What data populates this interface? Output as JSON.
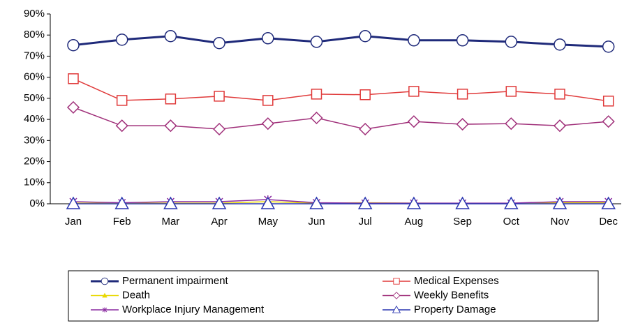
{
  "chart_data": {
    "type": "line",
    "categories": [
      "Jan",
      "Feb",
      "Mar",
      "Apr",
      "May",
      "Jun",
      "Jul",
      "Aug",
      "Sep",
      "Oct",
      "Nov",
      "Dec"
    ],
    "ylim": [
      0,
      90
    ],
    "yticks": [
      {
        "value": 0,
        "label": "0%"
      },
      {
        "value": 10,
        "label": "10%"
      },
      {
        "value": 20,
        "label": "20%"
      },
      {
        "value": 30,
        "label": "30%"
      },
      {
        "value": 40,
        "label": "40%"
      },
      {
        "value": 50,
        "label": "50%"
      },
      {
        "value": 60,
        "label": "60%"
      },
      {
        "value": 70,
        "label": "70%"
      },
      {
        "value": 80,
        "label": "80%"
      },
      {
        "value": 90,
        "label": "90%"
      }
    ],
    "series": [
      {
        "name": "Permanent impairment",
        "color": "#1f2a7a",
        "marker": "circle",
        "values": [
          75.2,
          77.8,
          79.5,
          76.2,
          78.5,
          76.8,
          79.5,
          77.5,
          77.5,
          76.8,
          75.5,
          74.5
        ]
      },
      {
        "name": "Medical Expenses",
        "color": "#e03a3a",
        "marker": "square",
        "values": [
          59.3,
          49,
          49.7,
          51,
          49,
          52,
          51.7,
          53.3,
          52,
          53.3,
          52,
          48.7
        ]
      },
      {
        "name": "Death",
        "color": "#e8d800",
        "marker": "triangle-filled",
        "values": [
          0.3,
          0.2,
          0.3,
          0.3,
          1,
          0.3,
          0.5,
          0.3,
          0.2,
          0.2,
          0.5,
          0.5
        ]
      },
      {
        "name": "Weekly Benefits",
        "color": "#a0307a",
        "marker": "diamond",
        "values": [
          45.7,
          37,
          37,
          35.4,
          38,
          40.7,
          35.4,
          39,
          37.7,
          38,
          37,
          39
        ]
      },
      {
        "name": "Workplace Injury Management",
        "color": "#8a2aa0",
        "marker": "star",
        "values": [
          1,
          0.5,
          1,
          1,
          2,
          0.5,
          0.3,
          0.3,
          0.3,
          0.3,
          1,
          1
        ]
      },
      {
        "name": "Property Damage",
        "color": "#2a36b0",
        "marker": "triangle",
        "values": [
          0,
          0,
          0,
          0,
          0,
          0,
          0,
          0,
          0,
          0,
          0,
          0
        ]
      }
    ]
  }
}
